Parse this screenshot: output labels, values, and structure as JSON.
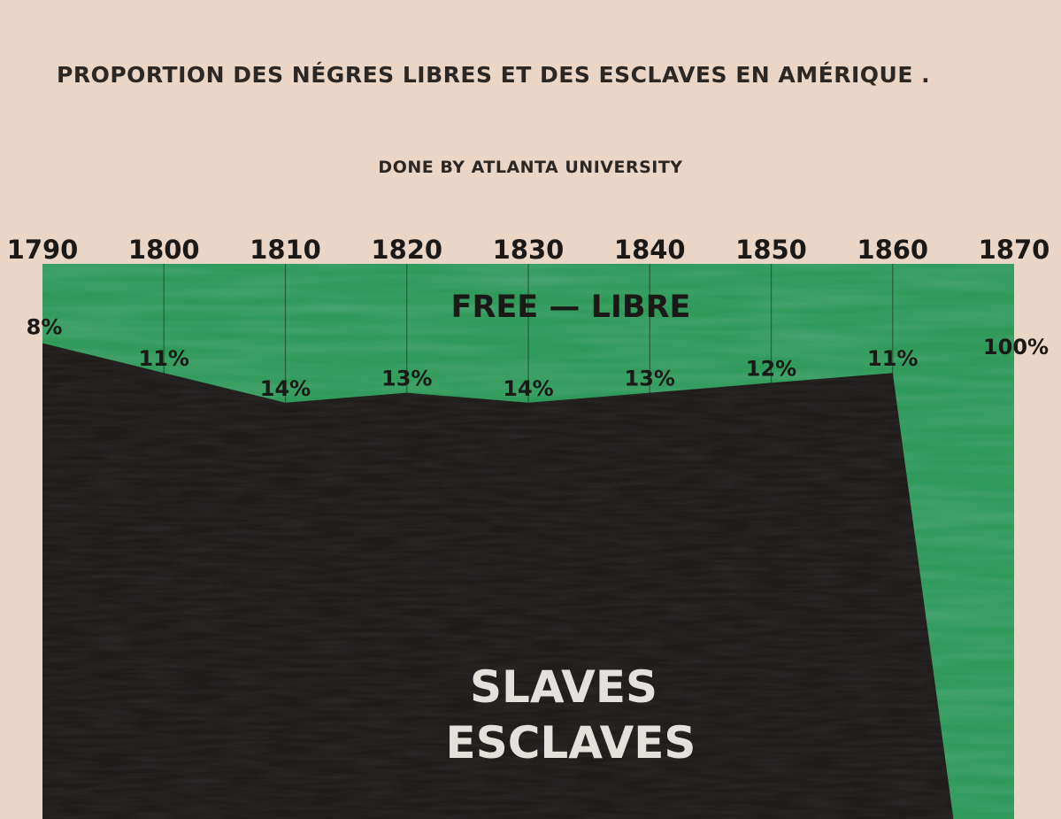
{
  "title": "PROPORTION DES NÉGRES LIBRES ET DES ESCLAVES EN AMÉRIQUE .",
  "subtitle": "DONE BY ATLANTA UNIVERSITY",
  "colors": {
    "background": "#e9d6c6",
    "free": "#2f9a5a",
    "slaves": "#1f1c1b",
    "text": "#2a2624"
  },
  "chart_data": {
    "type": "area",
    "x": [
      1790,
      1800,
      1810,
      1820,
      1830,
      1840,
      1850,
      1860,
      1870
    ],
    "xlim": [
      1790,
      1870
    ],
    "ylim": [
      0,
      100
    ],
    "series": [
      {
        "name": "FREE — LIBRE",
        "values": [
          8,
          11,
          14,
          13,
          14,
          13,
          12,
          11,
          100
        ],
        "color": "#2f9a5a"
      },
      {
        "name": "SLAVES ESCLAVES",
        "values": [
          92,
          89,
          86,
          87,
          86,
          87,
          88,
          89,
          0
        ],
        "color": "#1f1c1b"
      }
    ],
    "data_labels": [
      "8%",
      "11%",
      "14%",
      "13%",
      "14%",
      "13%",
      "12%",
      "11%",
      "100%"
    ],
    "tick_labels": [
      "1790",
      "1800",
      "1810",
      "1820",
      "1830",
      "1840",
      "1850",
      "1860",
      "1870"
    ],
    "free_label": "FREE — LIBRE",
    "slaves_label_line1": "SLAVES",
    "slaves_label_line2": "ESCLAVES",
    "grid": true,
    "grid_orientation": "vertical",
    "xaxis_position": "top"
  }
}
